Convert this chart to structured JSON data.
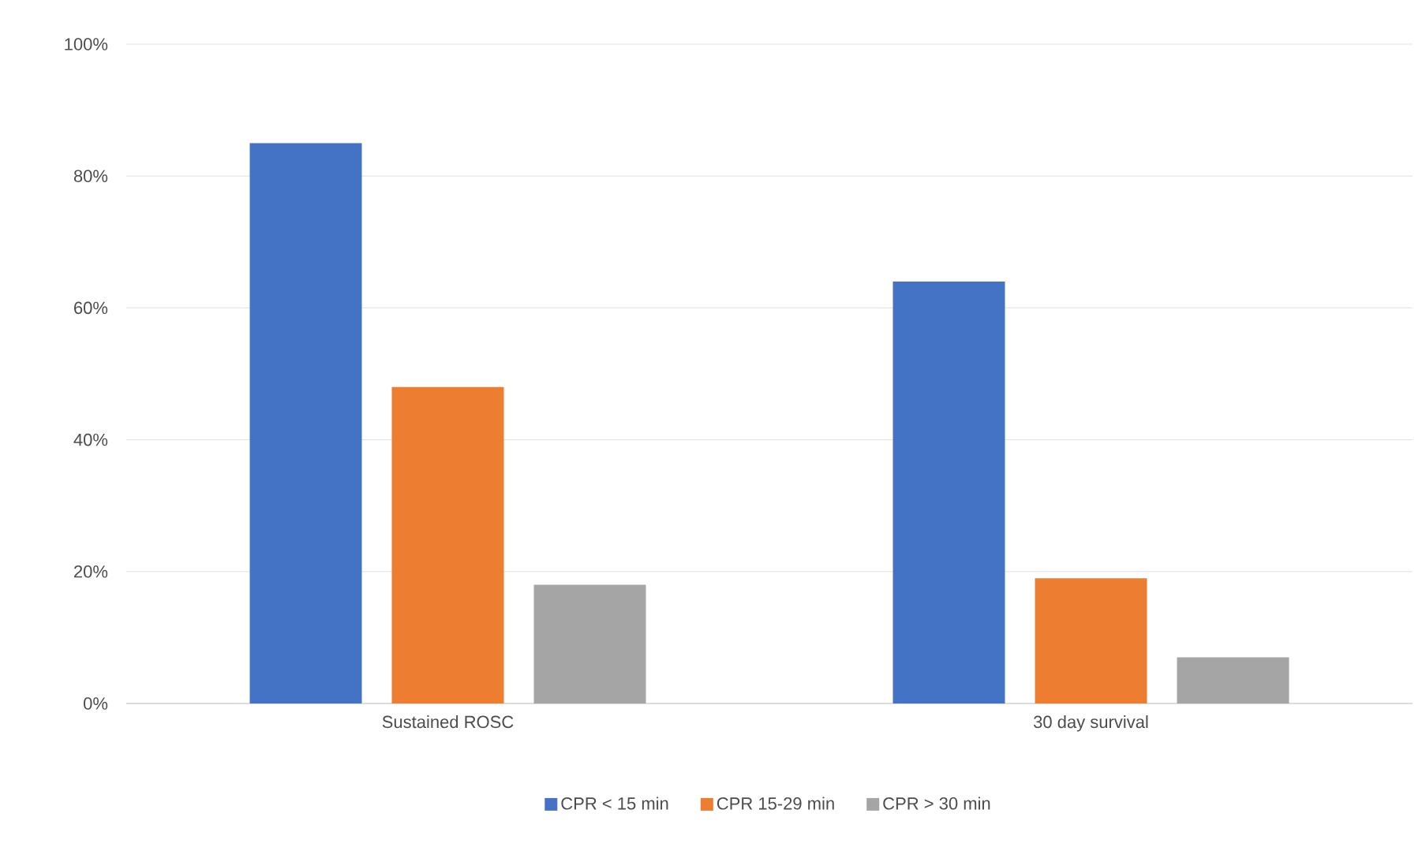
{
  "chart_data": {
    "type": "bar",
    "categories": [
      "Sustained ROSC",
      "30 day survival"
    ],
    "series": [
      {
        "name": "CPR < 15 min",
        "color": "#4472c4",
        "values": [
          85,
          64
        ]
      },
      {
        "name": "CPR 15-29 min",
        "color": "#ed7d31",
        "values": [
          48,
          19
        ]
      },
      {
        "name": "CPR > 30 min",
        "color": "#a5a5a5",
        "values": [
          18,
          7
        ]
      }
    ],
    "ylim": [
      0,
      100
    ],
    "yticks": [
      {
        "value": 0,
        "label": "0%"
      },
      {
        "value": 20,
        "label": "20%"
      },
      {
        "value": 40,
        "label": "40%"
      },
      {
        "value": 60,
        "label": "60%"
      },
      {
        "value": 80,
        "label": "80%"
      },
      {
        "value": 100,
        "label": "100%"
      }
    ],
    "grid": "y",
    "legend": "bottom"
  }
}
